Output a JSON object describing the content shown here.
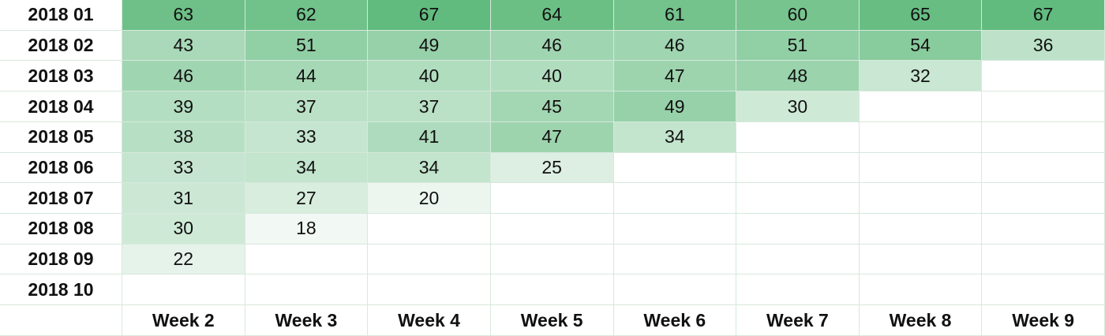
{
  "colors": {
    "scale_min": "#f2f8f4",
    "scale_max": "#62bb7e",
    "gridline": "#d7e8dc",
    "empty": "#ffffff",
    "text": "#111111"
  },
  "row_labels": [
    "2018 01",
    "2018 02",
    "2018 03",
    "2018 04",
    "2018 05",
    "2018 06",
    "2018 07",
    "2018 08",
    "2018 09",
    "2018 10"
  ],
  "col_labels": [
    "Week 2",
    "Week 3",
    "Week 4",
    "Week 5",
    "Week 6",
    "Week 7",
    "Week 8",
    "Week 9"
  ],
  "values": [
    [
      "63",
      "62",
      "67",
      "64",
      "61",
      "60",
      "65",
      "67"
    ],
    [
      "43",
      "51",
      "49",
      "46",
      "46",
      "51",
      "54",
      "36"
    ],
    [
      "46",
      "44",
      "40",
      "40",
      "47",
      "48",
      "32",
      ""
    ],
    [
      "39",
      "37",
      "37",
      "45",
      "49",
      "30",
      "",
      ""
    ],
    [
      "38",
      "33",
      "41",
      "47",
      "34",
      "",
      "",
      ""
    ],
    [
      "33",
      "34",
      "34",
      "25",
      "",
      "",
      "",
      ""
    ],
    [
      "31",
      "27",
      "20",
      "",
      "",
      "",
      "",
      ""
    ],
    [
      "30",
      "18",
      "",
      "",
      "",
      "",
      "",
      ""
    ],
    [
      "22",
      "",
      "",
      "",
      "",
      "",
      "",
      ""
    ],
    [
      "",
      "",
      "",
      "",
      "",
      "",
      "",
      ""
    ]
  ]
}
